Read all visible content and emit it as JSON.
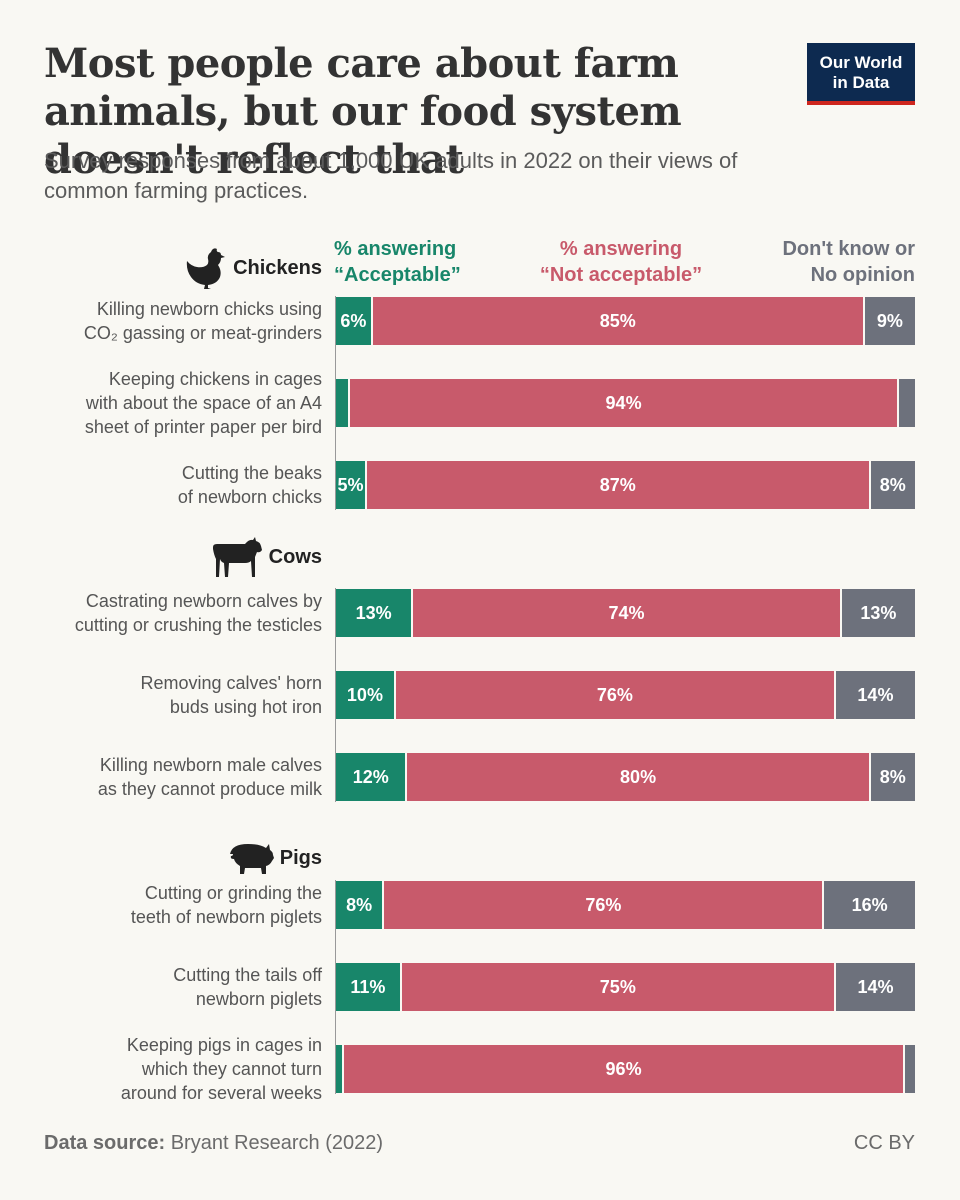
{
  "title": "Most people care about farm animals, but our food system doesn't reflect that",
  "subtitle": "Survey responses from about 1,000 UK adults in 2022 on their views of common farming practices.",
  "logo": {
    "line1": "Our World",
    "line2": "in Data",
    "bg_color": "#0d2a50",
    "accent_color": "#ce261e"
  },
  "columns": {
    "acceptable": {
      "line1": "% answering",
      "line2": "“Acceptable”",
      "color": "#18866a"
    },
    "not_acceptable": {
      "line1": "% answering",
      "line2": "“Not acceptable”",
      "color": "#c85a6b"
    },
    "dont_know": {
      "line1": "Don't know or",
      "line2": "No opinion",
      "color": "#6d717c"
    }
  },
  "groups": [
    {
      "name": "Chickens",
      "icon": "chicken-icon"
    },
    {
      "name": "Cows",
      "icon": "cow-icon"
    },
    {
      "name": "Pigs",
      "icon": "pig-icon"
    }
  ],
  "chart_data": {
    "type": "bar",
    "orientation": "horizontal-stacked-100",
    "series": [
      {
        "name": "% answering “Acceptable”",
        "color": "#18866a"
      },
      {
        "name": "% answering “Not acceptable”",
        "color": "#c85a6b"
      },
      {
        "name": "Don't know or No opinion",
        "color": "#6d717c"
      }
    ],
    "rows": [
      {
        "group": "Chickens",
        "label": [
          "Killing newborn chicks using",
          "CO₂ gassing or meat-grinders"
        ],
        "values": [
          6,
          85,
          9
        ],
        "labels": [
          "6%",
          "85%",
          "9%"
        ]
      },
      {
        "group": "Chickens",
        "label": [
          "Keeping chickens in cages",
          "with about the space of an A4",
          "sheet of printer paper per bird"
        ],
        "values": [
          2,
          94,
          3
        ],
        "labels": [
          "",
          "94%",
          ""
        ]
      },
      {
        "group": "Chickens",
        "label": [
          "Cutting the beaks",
          "of newborn chicks"
        ],
        "values": [
          5,
          87,
          8
        ],
        "labels": [
          "5%",
          "87%",
          "8%"
        ]
      },
      {
        "group": "Cows",
        "label": [
          "Castrating newborn calves by",
          "cutting or crushing the testicles"
        ],
        "values": [
          13,
          74,
          13
        ],
        "labels": [
          "13%",
          "74%",
          "13%"
        ]
      },
      {
        "group": "Cows",
        "label": [
          "Removing calves' horn",
          "buds using hot iron"
        ],
        "values": [
          10,
          76,
          14
        ],
        "labels": [
          "10%",
          "76%",
          "14%"
        ]
      },
      {
        "group": "Cows",
        "label": [
          "Killing newborn male calves",
          "as they cannot produce milk"
        ],
        "values": [
          12,
          80,
          8
        ],
        "labels": [
          "12%",
          "80%",
          "8%"
        ]
      },
      {
        "group": "Pigs",
        "label": [
          "Cutting or grinding the",
          "teeth of newborn piglets"
        ],
        "values": [
          8,
          76,
          16
        ],
        "labels": [
          "8%",
          "76%",
          "16%"
        ]
      },
      {
        "group": "Pigs",
        "label": [
          "Cutting the tails off",
          "newborn piglets"
        ],
        "values": [
          11,
          75,
          14
        ],
        "labels": [
          "11%",
          "75%",
          "14%"
        ]
      },
      {
        "group": "Pigs",
        "label": [
          "Keeping pigs in cages in",
          "which they cannot turn",
          "around for several weeks"
        ],
        "values": [
          1,
          96,
          2
        ],
        "labels": [
          "",
          "96%",
          ""
        ]
      }
    ],
    "xlim": [
      0,
      100
    ]
  },
  "footer": {
    "source_label": "Data source:",
    "source_value": "Bryant Research (2022)",
    "license": "CC BY"
  }
}
